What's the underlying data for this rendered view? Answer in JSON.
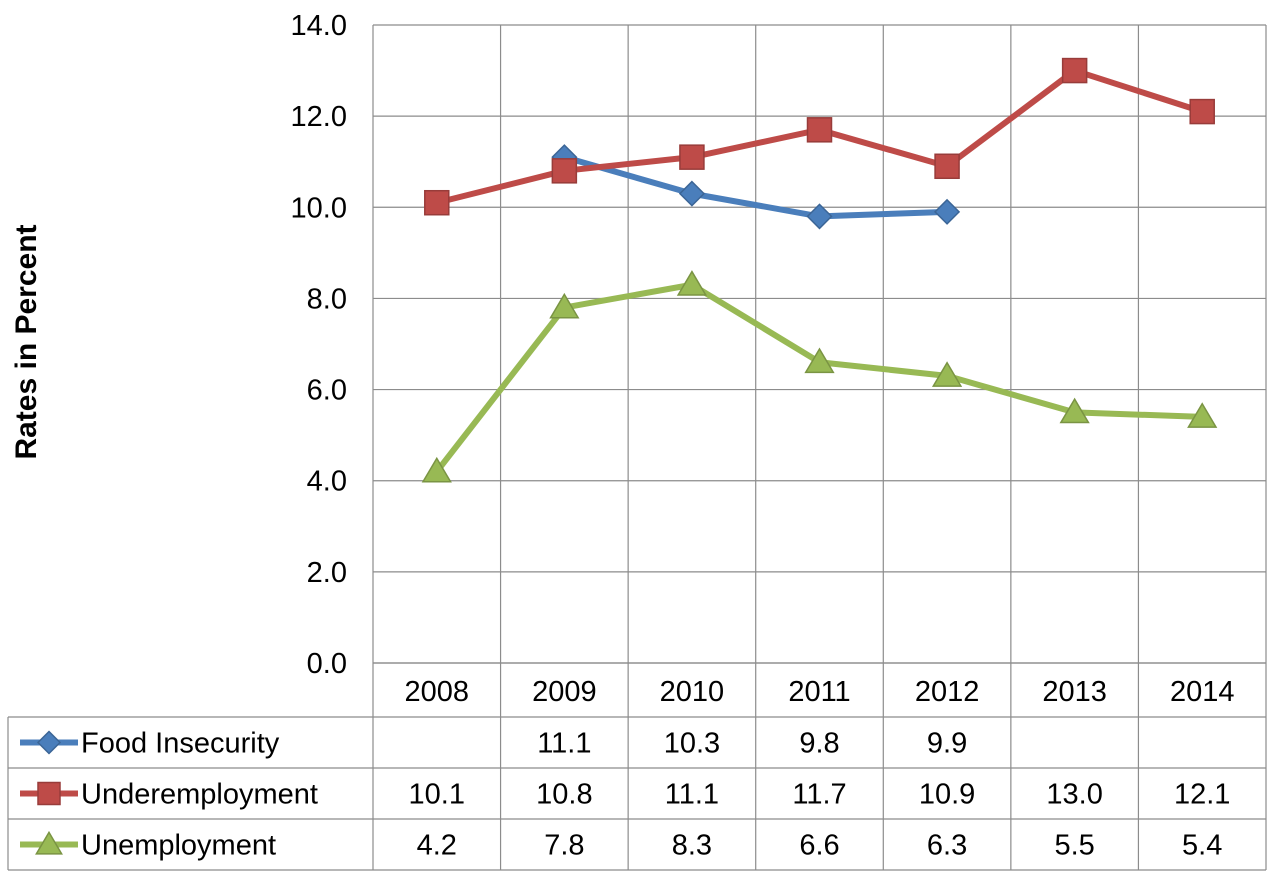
{
  "chart_data": {
    "type": "line",
    "ylabel": "Rates in Percent",
    "xlabel": "",
    "ylim": [
      0,
      14
    ],
    "y_ticks": [
      "0.0",
      "2.0",
      "4.0",
      "6.0",
      "8.0",
      "10.0",
      "12.0",
      "14.0"
    ],
    "grid": true,
    "legend": "data-table-left",
    "categories": [
      "2008",
      "2009",
      "2010",
      "2011",
      "2012",
      "2013",
      "2014"
    ],
    "series": [
      {
        "name": "Food Insecurity",
        "color": "#4a7ebb",
        "marker": "diamond",
        "values": [
          null,
          11.1,
          10.3,
          9.8,
          9.9,
          null,
          null
        ],
        "labels": [
          "",
          "11.1",
          "10.3",
          "9.8",
          "9.9",
          "",
          ""
        ]
      },
      {
        "name": "Underemployment",
        "color": "#be4b48",
        "marker": "square",
        "values": [
          10.1,
          10.8,
          11.1,
          11.7,
          10.9,
          13.0,
          12.1
        ],
        "labels": [
          "10.1",
          "10.8",
          "11.1",
          "11.7",
          "10.9",
          "13.0",
          "12.1"
        ]
      },
      {
        "name": "Unemployment",
        "color": "#98b954",
        "marker": "triangle",
        "values": [
          4.2,
          7.8,
          8.3,
          6.6,
          6.3,
          5.5,
          5.4
        ],
        "labels": [
          "4.2",
          "7.8",
          "8.3",
          "6.6",
          "6.3",
          "5.5",
          "5.4"
        ]
      }
    ]
  }
}
